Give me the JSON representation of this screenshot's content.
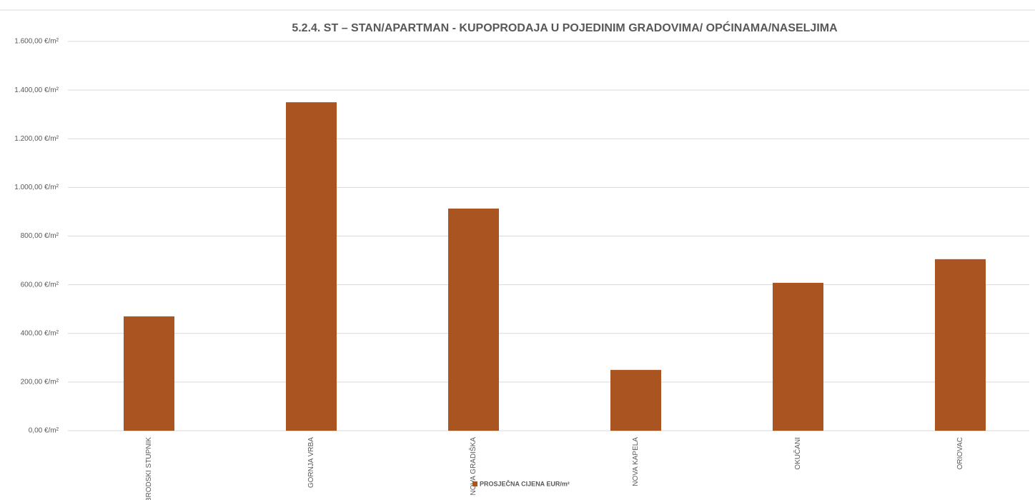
{
  "chart_data": {
    "type": "bar",
    "title": "5.2.4. ST – STAN/APARTMAN - KUPOPRODAJA U POJEDINIM GRADOVIMA/ OPĆINAMA/NASELJIMA",
    "categories": [
      "BRODSKI STUPNIK",
      "GORNJA VRBA",
      "NOVA GRADIŠKA",
      "NOVA KAPELA",
      "OKUČANI",
      "ORIOVAC"
    ],
    "series": [
      {
        "name": "PROSJEČNA CIJENA EUR/m²",
        "color": "#aa5422",
        "values": [
          470,
          1350,
          913,
          250,
          608,
          705
        ]
      }
    ],
    "ylim": [
      0,
      1600
    ],
    "yticks": [
      {
        "value": 0,
        "label": "0,00 €/m²"
      },
      {
        "value": 200,
        "label": "200,00 €/m²"
      },
      {
        "value": 400,
        "label": "400,00 €/m²"
      },
      {
        "value": 600,
        "label": "600,00 €/m²"
      },
      {
        "value": 800,
        "label": "800,00 €/m²"
      },
      {
        "value": 1000,
        "label": "1.000,00 €/m²"
      },
      {
        "value": 1200,
        "label": "1.200,00 €/m²"
      },
      {
        "value": 1400,
        "label": "1.400,00 €/m²"
      },
      {
        "value": 1600,
        "label": "1.600,00 €/m²"
      }
    ],
    "grid": true,
    "legend": "bottom"
  }
}
